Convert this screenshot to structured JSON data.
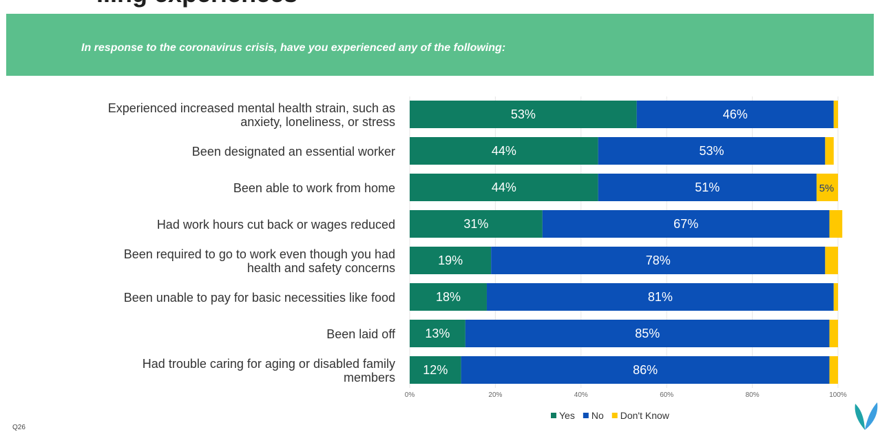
{
  "slide": {
    "title": "...ng experiences",
    "question": "In response to the coronavirus crisis, have you experienced any of the following:",
    "footnote": "Q26"
  },
  "colors": {
    "banner": "#5bbf8c",
    "yes": "#0f7d62",
    "no": "#0b50b7",
    "dont_know": "#ffc800"
  },
  "chart_data": {
    "type": "bar",
    "orientation": "horizontal",
    "stacked": true,
    "categories": [
      [
        "Experienced increased mental health strain, such as",
        "anxiety, loneliness, or stress"
      ],
      [
        "Been designated an essential worker"
      ],
      [
        "Been able to work from home"
      ],
      [
        "Had work hours cut back or wages reduced"
      ],
      [
        "Been required to go to work even though you had",
        "health and safety concerns"
      ],
      [
        "Been unable to pay for basic necessities like food"
      ],
      [
        "Been laid off"
      ],
      [
        "Had trouble caring for aging or disabled family",
        "members"
      ]
    ],
    "series": [
      {
        "name": "Yes",
        "values": [
          53,
          44,
          44,
          31,
          19,
          18,
          13,
          12
        ]
      },
      {
        "name": "No",
        "values": [
          46,
          53,
          51,
          67,
          78,
          81,
          85,
          86
        ]
      },
      {
        "name": "Don't Know",
        "values": [
          1,
          2,
          5,
          3,
          3,
          1,
          2,
          2
        ]
      }
    ],
    "data_labels": [
      [
        "53%",
        "44%",
        "44%",
        "31%",
        "19%",
        "18%",
        "13%",
        "12%"
      ],
      [
        "46%",
        "53%",
        "51%",
        "67%",
        "78%",
        "81%",
        "85%",
        "86%"
      ],
      [
        "",
        "",
        "5%",
        "",
        "",
        "",
        "",
        ""
      ]
    ],
    "xlim": [
      0,
      100
    ],
    "xticks": [
      0,
      20,
      40,
      60,
      80,
      100
    ],
    "xtick_labels": [
      "0%",
      "20%",
      "40%",
      "60%",
      "80%",
      "100%"
    ],
    "grid": true,
    "legend": "bottom-right"
  }
}
